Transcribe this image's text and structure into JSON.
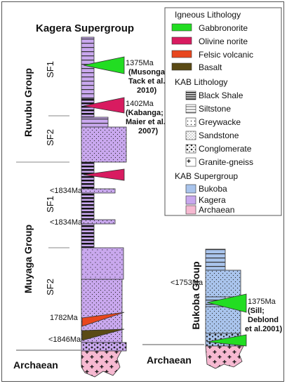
{
  "titles": {
    "supergroup": "Kagera Supergroup",
    "ruvubu": "Ruvubu Group",
    "muyaga": "Muyaga Group",
    "bukoba_group": "Bukoba Group",
    "archaean_left": "Archaean",
    "archaean_right": "Archaean"
  },
  "subformations": {
    "ruvubu_sf1": "SF1",
    "ruvubu_sf2": "SF2",
    "muyaga_sf1": "SF1",
    "muyaga_sf2": "SF2"
  },
  "ages": {
    "musongati": [
      "1375Ma",
      "(Musongati;",
      "Tack et al.,",
      "2010)"
    ],
    "kabanga": [
      "1402Ma",
      "(Kabanga;",
      "Maier et al.",
      "2007)"
    ],
    "lt1834_a": "<1834Ma",
    "lt1834_b": "<1834Ma",
    "age1782": "1782Ma",
    "lt1846": "<1846Ma",
    "lt1753": "<1753Ma",
    "sill": [
      "1375Ma",
      "(Sill;",
      "Deblond",
      "et al.2001)"
    ]
  },
  "legend": {
    "igneous_title": "Igneous Lithology",
    "igneous": [
      {
        "label": "Gabbronorite",
        "color": "#22dd22"
      },
      {
        "label": "Olivine norite",
        "color": "#d81b60"
      },
      {
        "label": "Felsic volcanic",
        "color": "#e8471e"
      },
      {
        "label": "Basalt",
        "color": "#5a4a14"
      }
    ],
    "kab_title": "KAB Lithology",
    "kab": [
      {
        "label": "Black Shale",
        "pattern": "black-shale"
      },
      {
        "label": "Siltstone",
        "pattern": "siltstone"
      },
      {
        "label": "Greywacke",
        "pattern": "greywacke"
      },
      {
        "label": "Sandstone",
        "pattern": "sandstone"
      },
      {
        "label": "Conglomerate",
        "pattern": "conglomerate"
      },
      {
        "label": "Granite-gneiss",
        "pattern": "granite"
      }
    ],
    "super_title": "KAB Supergroup",
    "super": [
      {
        "label": "Bukoba",
        "color": "#a9c4ec"
      },
      {
        "label": "Kagera",
        "color": "#c9a8ee"
      },
      {
        "label": "Archaean",
        "color": "#f6b9d1"
      }
    ]
  }
}
